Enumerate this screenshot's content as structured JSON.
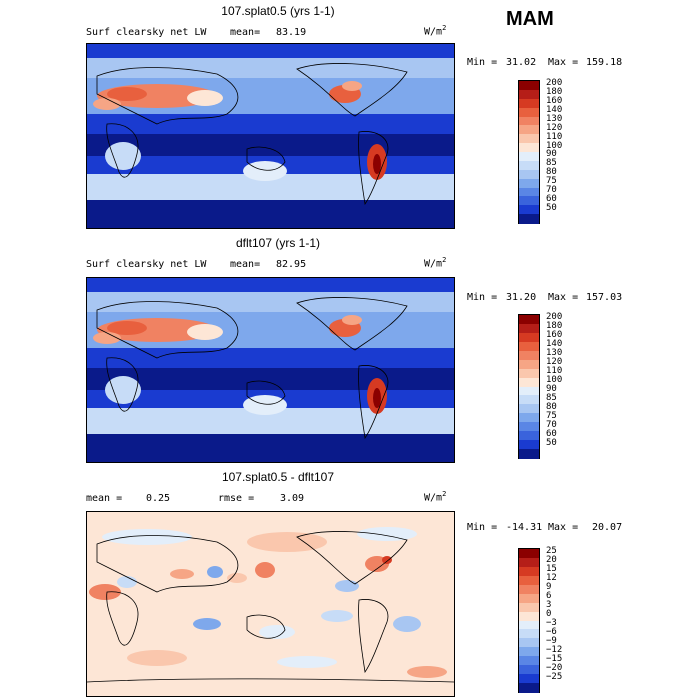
{
  "season": "MAM",
  "chart_data": [
    {
      "type": "heatmap",
      "title": "107.splat0.5 (yrs 1-1)",
      "variable": "Surf clearsky net LW",
      "mean_label": "mean=",
      "mean": "83.19",
      "units": "W/m",
      "units_exp": "2",
      "min_label": "Min =",
      "min": "31.02",
      "max_label": "Max =",
      "max": "159.18",
      "levels": [
        "200",
        "180",
        "160",
        "140",
        "130",
        "120",
        "110",
        "100",
        "90",
        "85",
        "80",
        "75",
        "70",
        "60",
        "50"
      ],
      "colors": [
        "#8b0000",
        "#b51e18",
        "#d63a22",
        "#e8603e",
        "#f08262",
        "#f6a585",
        "#fac7ad",
        "#fde6d6",
        "#e3eefa",
        "#c7dcf7",
        "#a8c6f2",
        "#7ea8ec",
        "#5a86e5",
        "#3a63dc",
        "#1a3bd0",
        "#0a1a8a"
      ]
    },
    {
      "type": "heatmap",
      "title": "dflt107 (yrs 1-1)",
      "variable": "Surf clearsky net LW",
      "mean_label": "mean=",
      "mean": "82.95",
      "units": "W/m",
      "units_exp": "2",
      "min_label": "Min =",
      "min": "31.20",
      "max_label": "Max =",
      "max": "157.03",
      "levels": [
        "200",
        "180",
        "160",
        "140",
        "130",
        "120",
        "110",
        "100",
        "90",
        "85",
        "80",
        "75",
        "70",
        "60",
        "50"
      ],
      "colors": [
        "#8b0000",
        "#b51e18",
        "#d63a22",
        "#e8603e",
        "#f08262",
        "#f6a585",
        "#fac7ad",
        "#fde6d6",
        "#e3eefa",
        "#c7dcf7",
        "#a8c6f2",
        "#7ea8ec",
        "#5a86e5",
        "#3a63dc",
        "#1a3bd0",
        "#0a1a8a"
      ]
    },
    {
      "type": "heatmap",
      "title": "107.splat0.5 - dflt107",
      "mean_label": "mean =",
      "mean": "0.25",
      "rmse_label": "rmse =",
      "rmse": "3.09",
      "units": "W/m",
      "units_exp": "2",
      "min_label": "Min =",
      "min": "-14.31",
      "max_label": "Max =",
      "max": "20.07",
      "levels": [
        "25",
        "20",
        "15",
        "12",
        "9",
        "6",
        "3",
        "0",
        "−3",
        "−6",
        "−9",
        "−12",
        "−15",
        "−20",
        "−25"
      ],
      "colors": [
        "#8b0000",
        "#b51e18",
        "#d63a22",
        "#e8603e",
        "#f08262",
        "#f6a585",
        "#fac7ad",
        "#fde6d6",
        "#e3eefa",
        "#c7dcf7",
        "#a8c6f2",
        "#7ea8ec",
        "#5a86e5",
        "#3a63dc",
        "#1a3bd0",
        "#0a1a8a"
      ]
    }
  ]
}
